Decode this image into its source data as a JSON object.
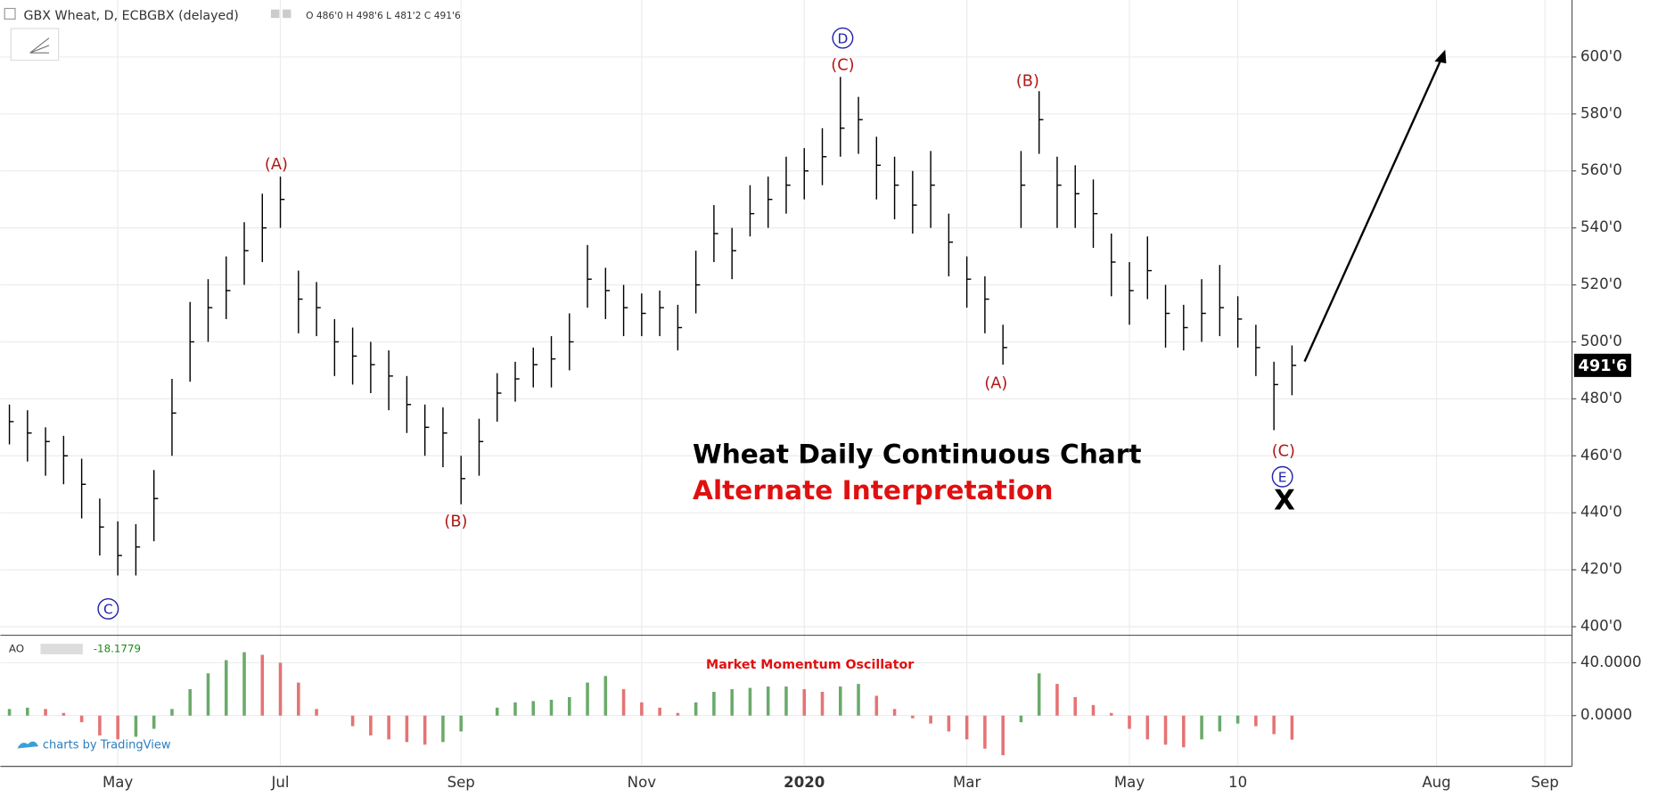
{
  "symbol": "GBX Wheat, D, ECBGBX (delayed)",
  "ohlc_label": "O 486'0 H 498'6 L 481'2 C 491'6",
  "last_label": "491'6",
  "watermark": "charts by TradingView",
  "chart_data": [
    {
      "type": "ohlc",
      "title": "Wheat Daily Continuous Chart",
      "subtitle": "Alternate Interpretation",
      "annotations": [
        "C",
        "(A)",
        "(B)",
        "D",
        "(C)",
        "(B)",
        "(A)",
        "(C)",
        "E",
        "X"
      ],
      "categories": [
        null,
        null,
        null,
        null,
        null,
        null,
        "May",
        null,
        null,
        null,
        null,
        null,
        null,
        null,
        null,
        "Jul",
        null,
        null,
        null,
        null,
        null,
        null,
        null,
        null,
        null,
        "Sep",
        null,
        null,
        null,
        null,
        null,
        null,
        null,
        null,
        null,
        "Nov",
        null,
        null,
        null,
        null,
        null,
        null,
        null,
        null,
        "2020",
        null,
        null,
        null,
        null,
        null,
        null,
        null,
        null,
        "Mar",
        null,
        null,
        null,
        null,
        null,
        null,
        null,
        null,
        "May",
        null,
        null,
        null,
        null,
        null,
        "10",
        null,
        null,
        null,
        null,
        null,
        null,
        null,
        null,
        null,
        null,
        "Aug",
        null,
        null,
        null,
        null,
        null,
        "Sep",
        null
      ],
      "high": [
        478,
        476,
        470,
        467,
        459,
        445,
        437,
        436,
        455,
        487,
        514,
        522,
        530,
        542,
        552,
        558,
        525,
        521,
        508,
        505,
        500,
        497,
        488,
        478,
        477,
        460,
        473,
        489,
        493,
        498,
        502,
        510,
        534,
        526,
        520,
        517,
        518,
        513,
        532,
        548,
        540,
        555,
        558,
        565,
        568,
        575,
        593,
        586,
        572,
        565,
        560,
        567,
        545,
        530,
        523,
        506,
        567,
        588,
        565,
        562,
        557,
        538,
        528,
        537,
        520,
        513,
        522,
        527,
        516,
        506,
        493,
        498.75,
        null,
        null,
        null,
        null,
        null,
        null,
        null,
        null,
        null,
        null,
        null,
        null,
        null,
        null,
        null
      ],
      "low": [
        464,
        458,
        453,
        450,
        438,
        425,
        418,
        418,
        430,
        460,
        486,
        500,
        508,
        520,
        528,
        540,
        503,
        502,
        488,
        485,
        482,
        476,
        468,
        460,
        456,
        443,
        453,
        472,
        479,
        484,
        484,
        490,
        512,
        508,
        502,
        502,
        502,
        497,
        510,
        528,
        522,
        537,
        540,
        545,
        550,
        555,
        565,
        566,
        550,
        543,
        538,
        540,
        523,
        512,
        503,
        492,
        540,
        566,
        540,
        540,
        533,
        516,
        506,
        515,
        498,
        497,
        500,
        502,
        498,
        488,
        469,
        481.25,
        null,
        null,
        null,
        null,
        null,
        null,
        null,
        null,
        null,
        null,
        null,
        null,
        null,
        null,
        null
      ],
      "close": [
        472,
        468,
        465,
        460,
        450,
        435,
        425,
        428,
        445,
        475,
        500,
        512,
        518,
        532,
        540,
        550,
        515,
        512,
        500,
        495,
        492,
        488,
        478,
        470,
        468,
        452,
        465,
        482,
        487,
        492,
        494,
        500,
        522,
        518,
        512,
        510,
        512,
        505,
        520,
        538,
        532,
        545,
        550,
        555,
        560,
        565,
        575,
        578,
        562,
        555,
        548,
        555,
        535,
        522,
        515,
        498,
        555,
        578,
        555,
        552,
        545,
        528,
        518,
        525,
        510,
        505,
        510,
        512,
        508,
        498,
        485,
        491.75,
        null,
        null,
        null,
        null,
        null,
        null,
        null,
        null,
        null,
        null,
        null,
        null,
        null,
        null,
        null
      ],
      "color": "#000000",
      "ylim": [
        397,
        620
      ],
      "yticks": [
        {
          "value": 400,
          "label": "400'0"
        },
        {
          "value": 420,
          "label": "420'0"
        },
        {
          "value": 440,
          "label": "440'0"
        },
        {
          "value": 460,
          "label": "460'0"
        },
        {
          "value": 480,
          "label": "480'0"
        },
        {
          "value": 500,
          "label": "500'0"
        },
        {
          "value": 520,
          "label": "520'0"
        },
        {
          "value": 540,
          "label": "540'0"
        },
        {
          "value": 560,
          "label": "560'0"
        },
        {
          "value": 580,
          "label": "580'0"
        },
        {
          "value": 600,
          "label": "600'0"
        }
      ],
      "grid": true
    },
    {
      "type": "bar",
      "name": "AO",
      "title": "Market Momentum Oscillator",
      "values": [
        5,
        6,
        5,
        2,
        -5,
        -15,
        -18,
        -16,
        -10,
        5,
        20,
        32,
        42,
        48,
        46,
        40,
        25,
        5,
        0,
        -8,
        -15,
        -18,
        -20,
        -22,
        -20,
        -12,
        0,
        6,
        10,
        11,
        12,
        14,
        25,
        30,
        20,
        10,
        6,
        2,
        10,
        18,
        20,
        21,
        22,
        22,
        20,
        18,
        22,
        24,
        15,
        5,
        -2,
        -6,
        -12,
        -18,
        -25,
        -30,
        -5,
        32,
        24,
        14,
        8,
        2,
        -10,
        -18,
        -22,
        -24,
        -18,
        -12,
        -6,
        -8,
        -14,
        -18.1779,
        null,
        null,
        null,
        null,
        null,
        null,
        null,
        null,
        null,
        null,
        null,
        null,
        null,
        null,
        null
      ],
      "up_color": "#6aaa6a",
      "down_color": "#e57373",
      "ylim": [
        -38.4,
        60.8
      ],
      "yticks": [
        {
          "value": 0,
          "label": "0.0000"
        },
        {
          "value": 40,
          "label": "40.0000"
        }
      ],
      "grid": true
    }
  ]
}
